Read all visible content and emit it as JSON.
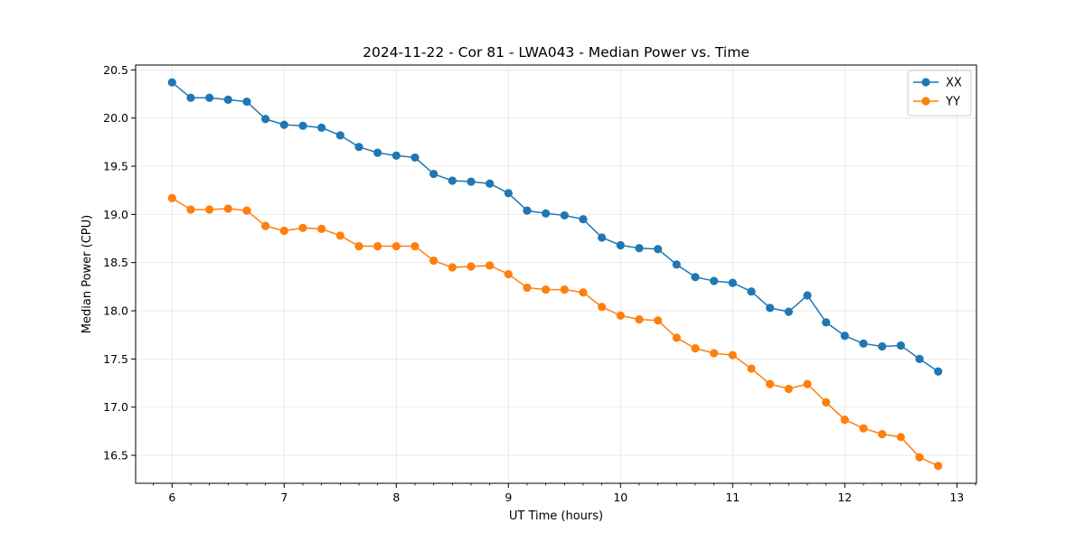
{
  "chart_data": {
    "type": "line",
    "title": "2024-11-22 - Cor 81 - LWA043 - Median Power vs. Time",
    "xlabel": "UT Time (hours)",
    "ylabel": "Median Power (CPU)",
    "xlim": [
      5.675,
      13.175
    ],
    "ylim": [
      16.21,
      20.55
    ],
    "xticks": [
      6,
      7,
      8,
      9,
      10,
      11,
      12,
      13
    ],
    "xtick_labels": [
      "6",
      "7",
      "8",
      "9",
      "10",
      "11",
      "12",
      "13"
    ],
    "yticks": [
      16.5,
      17.0,
      17.5,
      18.0,
      18.5,
      19.0,
      19.5,
      20.0,
      20.5
    ],
    "ytick_labels": [
      "16.5",
      "17.0",
      "17.5",
      "18.0",
      "18.5",
      "19.0",
      "19.5",
      "20.0",
      "20.5"
    ],
    "grid": true,
    "legend_position": "top-right",
    "x": [
      6.0,
      6.1667,
      6.3333,
      6.5,
      6.6667,
      6.8333,
      7.0,
      7.1667,
      7.3333,
      7.5,
      7.6667,
      7.8333,
      8.0,
      8.1667,
      8.3333,
      8.5,
      8.6667,
      8.8333,
      9.0,
      9.1667,
      9.3333,
      9.5,
      9.6667,
      9.8333,
      10.0,
      10.1667,
      10.3333,
      10.5,
      10.6667,
      10.8333,
      11.0,
      11.1667,
      11.3333,
      11.5,
      11.6667,
      11.8333,
      12.0,
      12.1667,
      12.3333,
      12.5,
      12.6667,
      12.8333
    ],
    "series": [
      {
        "name": "XX",
        "color": "#1f77b4",
        "values": [
          20.37,
          20.21,
          20.21,
          20.19,
          20.17,
          19.99,
          19.93,
          19.92,
          19.9,
          19.82,
          19.7,
          19.64,
          19.61,
          19.59,
          19.42,
          19.35,
          19.34,
          19.32,
          19.22,
          19.04,
          19.01,
          18.99,
          18.95,
          18.76,
          18.68,
          18.65,
          18.64,
          18.48,
          18.35,
          18.31,
          18.29,
          18.2,
          18.03,
          17.99,
          18.16,
          17.88,
          17.74,
          17.66,
          17.63,
          17.64,
          17.5,
          17.37
        ]
      },
      {
        "name": "YY",
        "color": "#ff7f0e",
        "values": [
          19.17,
          19.05,
          19.05,
          19.06,
          19.04,
          18.88,
          18.83,
          18.86,
          18.85,
          18.78,
          18.67,
          18.67,
          18.67,
          18.67,
          18.52,
          18.45,
          18.46,
          18.47,
          18.38,
          18.24,
          18.22,
          18.22,
          18.19,
          18.04,
          17.95,
          17.91,
          17.9,
          17.72,
          17.61,
          17.56,
          17.54,
          17.4,
          17.24,
          17.19,
          17.24,
          17.05,
          16.87,
          16.78,
          16.72,
          16.69,
          16.48,
          16.39
        ]
      }
    ]
  }
}
